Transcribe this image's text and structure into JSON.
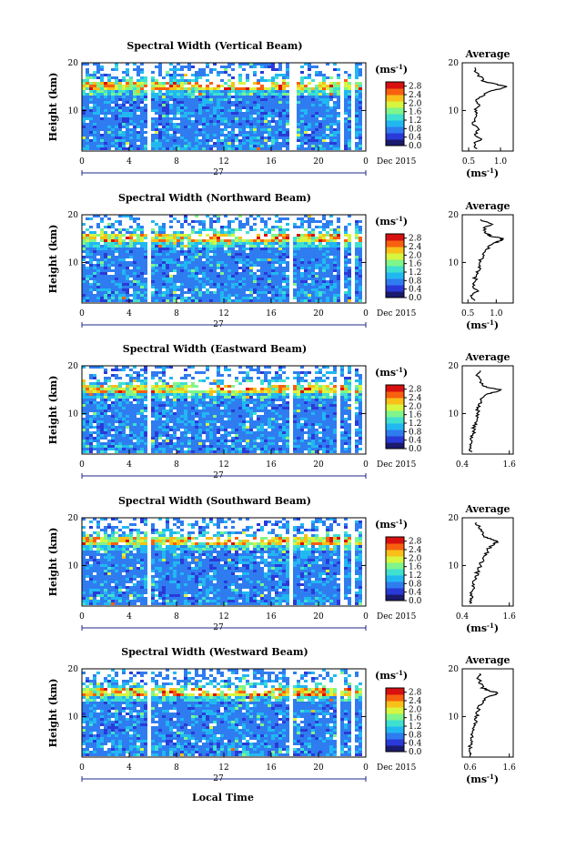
{
  "figure": {
    "xlabel": "Local Time",
    "y_unit": "(ms⁻¹)"
  },
  "colorbar": {
    "unit": "(ms⁻¹)",
    "ticks": [
      "0.0",
      "0.4",
      "0.8",
      "1.2",
      "1.6",
      "2.0",
      "2.4",
      "2.8"
    ],
    "range": [
      0.0,
      3.0
    ],
    "colors": [
      "#1a1a6e",
      "#2a3ad8",
      "#2f7cf0",
      "#21b8f2",
      "#3fe0d0",
      "#7ff58a",
      "#d8f540",
      "#f8c018",
      "#f86010",
      "#d81010"
    ]
  },
  "chart_data": [
    {
      "type": "heatmap",
      "title": "Spectral Width (Vertical Beam)",
      "ylabel": "Height (km)",
      "ylim": [
        1.5,
        20
      ],
      "yticks": [
        "10",
        "20"
      ],
      "xlim": [
        0,
        24
      ],
      "xticks": [
        "0",
        "4",
        "8",
        "12",
        "16",
        "20",
        "0"
      ],
      "date_label": "27",
      "month_label": "Dec 2015",
      "colorbar_ticks": [
        "0.0",
        "0.4",
        "0.8",
        "1.2",
        "1.6",
        "2.0",
        "2.4",
        "2.8"
      ],
      "data_gaps_hours": [
        [
          5.4,
          5.7
        ],
        [
          17.6,
          18.0
        ],
        [
          21.8,
          22.2
        ],
        [
          22.8,
          23.1
        ],
        [
          23.6,
          24.0
        ]
      ],
      "enhanced_layer_km": 15,
      "average_profile": {
        "title": "Average",
        "xlabel": "(ms⁻¹)",
        "xlim": [
          0.4,
          1.2
        ],
        "xticks": [
          "0.5",
          "1.0"
        ],
        "yticks": [
          "10",
          "20"
        ],
        "height_km": [
          2,
          3,
          4,
          5,
          6,
          7,
          8,
          9,
          10,
          11,
          12,
          13,
          14,
          14.5,
          15,
          15.5,
          16,
          17,
          18,
          19
        ],
        "width": [
          0.62,
          0.58,
          0.7,
          0.6,
          0.66,
          0.58,
          0.6,
          0.64,
          0.6,
          0.68,
          0.62,
          0.7,
          0.8,
          0.98,
          1.08,
          0.95,
          0.75,
          0.68,
          0.62,
          0.6
        ]
      }
    },
    {
      "type": "heatmap",
      "title": "Spectral Width (Northward Beam)",
      "ylabel": "Height (km)",
      "ylim": [
        1.5,
        20
      ],
      "yticks": [
        "10",
        "20"
      ],
      "xlim": [
        0,
        24
      ],
      "xticks": [
        "0",
        "4",
        "8",
        "12",
        "16",
        "20",
        "0"
      ],
      "date_label": "27",
      "month_label": "Dec 2015",
      "colorbar_ticks": [
        "0.0",
        "0.4",
        "0.8",
        "1.2",
        "1.6",
        "2.0",
        "2.4",
        "2.8"
      ],
      "data_gaps_hours": [
        [
          5.5,
          5.8
        ],
        [
          17.5,
          17.8
        ],
        [
          21.8,
          22.1
        ],
        [
          22.8,
          23.1
        ],
        [
          23.6,
          24.0
        ]
      ],
      "enhanced_layer_km": 15,
      "average_profile": {
        "title": "Average",
        "xlabel": "(ms⁻¹)",
        "xlim": [
          0.4,
          1.3
        ],
        "xticks": [
          "0.5",
          "1.0"
        ],
        "yticks": [
          "10",
          "20"
        ],
        "height_km": [
          2,
          3,
          4,
          5,
          6,
          7,
          8,
          9,
          10,
          11,
          12,
          13,
          14,
          14.5,
          15,
          15.5,
          16,
          17,
          18,
          19
        ],
        "width": [
          0.6,
          0.58,
          0.66,
          0.6,
          0.64,
          0.62,
          0.66,
          0.7,
          0.68,
          0.74,
          0.78,
          0.85,
          0.95,
          1.05,
          1.12,
          0.92,
          0.82,
          0.78,
          0.9,
          0.72
        ]
      }
    },
    {
      "type": "heatmap",
      "title": "Spectral Width (Eastward Beam)",
      "ylabel": "Height (km)",
      "ylim": [
        1.5,
        20
      ],
      "yticks": [
        "10",
        "20"
      ],
      "xlim": [
        0,
        24
      ],
      "xticks": [
        "0",
        "4",
        "8",
        "12",
        "16",
        "20",
        "0"
      ],
      "date_label": "27",
      "month_label": "Dec 2015",
      "colorbar_ticks": [
        "0.0",
        "0.4",
        "0.8",
        "1.2",
        "1.6",
        "2.0",
        "2.4",
        "2.8"
      ],
      "data_gaps_hours": [
        [
          5.5,
          5.8
        ],
        [
          17.6,
          17.9
        ],
        [
          21.6,
          21.9
        ],
        [
          22.8,
          23.0
        ],
        [
          23.6,
          24.0
        ]
      ],
      "enhanced_layer_km": 15,
      "average_profile": {
        "title": "Average",
        "xlabel": "",
        "xlim": [
          0.4,
          1.7
        ],
        "xticks": [
          "0.4",
          "1.6"
        ],
        "yticks": [
          "10",
          "20"
        ],
        "height_km": [
          2,
          3,
          4,
          5,
          6,
          7,
          8,
          9,
          10,
          11,
          12,
          13,
          14,
          14.5,
          15,
          15.5,
          16,
          17,
          18,
          19
        ],
        "width": [
          0.62,
          0.6,
          0.66,
          0.62,
          0.68,
          0.7,
          0.72,
          0.76,
          0.8,
          0.78,
          0.84,
          0.9,
          1.0,
          1.25,
          1.35,
          1.05,
          0.9,
          0.85,
          0.8,
          0.86
        ]
      }
    },
    {
      "type": "heatmap",
      "title": "Spectral Width (Southward Beam)",
      "ylabel": "Height (km)",
      "ylim": [
        1.5,
        20
      ],
      "yticks": [
        "10",
        "20"
      ],
      "xlim": [
        0,
        24
      ],
      "xticks": [
        "0",
        "4",
        "8",
        "12",
        "16",
        "20",
        "0"
      ],
      "date_label": "27",
      "month_label": "Dec 2015",
      "colorbar_ticks": [
        "0.0",
        "0.4",
        "0.8",
        "1.2",
        "1.6",
        "2.0",
        "2.4",
        "2.8"
      ],
      "data_gaps_hours": [
        [
          5.5,
          5.8
        ],
        [
          17.5,
          17.8
        ],
        [
          21.8,
          22.1
        ],
        [
          22.8,
          23.0
        ],
        [
          23.6,
          24.0
        ]
      ],
      "enhanced_layer_km": 15,
      "average_profile": {
        "title": "Average",
        "xlabel": "(ms⁻¹)",
        "xlim": [
          0.4,
          1.7
        ],
        "xticks": [
          "0.4",
          "1.6"
        ],
        "yticks": [
          "10",
          "20"
        ],
        "height_km": [
          2,
          3,
          4,
          5,
          6,
          7,
          8,
          9,
          10,
          11,
          12,
          13,
          14,
          14.5,
          15,
          15.5,
          16,
          17,
          18,
          19
        ],
        "width": [
          0.6,
          0.62,
          0.64,
          0.66,
          0.7,
          0.72,
          0.76,
          0.8,
          0.86,
          0.9,
          0.96,
          1.05,
          1.1,
          1.2,
          1.3,
          1.12,
          1.0,
          0.9,
          0.82,
          0.76
        ]
      }
    },
    {
      "type": "heatmap",
      "title": "Spectral Width (Westward Beam)",
      "ylabel": "Height (km)",
      "ylim": [
        1.5,
        20
      ],
      "yticks": [
        "10",
        "20"
      ],
      "xlim": [
        0,
        24
      ],
      "xticks": [
        "0",
        "4",
        "8",
        "12",
        "16",
        "20",
        "0"
      ],
      "date_label": "27",
      "month_label": "Dec 2015",
      "colorbar_ticks": [
        "0.0",
        "0.4",
        "0.8",
        "1.2",
        "1.6",
        "2.0",
        "2.4",
        "2.8"
      ],
      "data_gaps_hours": [
        [
          5.5,
          5.8
        ],
        [
          17.6,
          17.9
        ],
        [
          21.6,
          21.9
        ],
        [
          22.8,
          23.0
        ],
        [
          23.6,
          24.0
        ]
      ],
      "enhanced_layer_km": 15,
      "average_profile": {
        "title": "Average",
        "xlabel": "(ms⁻¹)",
        "xlim": [
          0.4,
          1.7
        ],
        "xticks": [
          "0.6",
          "1.6"
        ],
        "yticks": [
          "10",
          "20"
        ],
        "height_km": [
          2,
          3,
          4,
          5,
          6,
          7,
          8,
          9,
          10,
          11,
          12,
          13,
          14,
          14.5,
          15,
          15.5,
          16,
          17,
          18,
          19
        ],
        "width": [
          0.6,
          0.62,
          0.6,
          0.64,
          0.66,
          0.68,
          0.7,
          0.74,
          0.78,
          0.8,
          0.84,
          0.9,
          1.05,
          1.2,
          1.3,
          1.05,
          0.92,
          0.86,
          0.8,
          0.84
        ]
      }
    }
  ]
}
